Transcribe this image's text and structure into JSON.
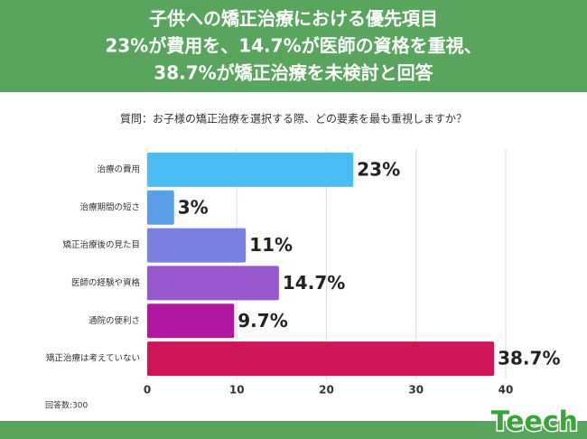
{
  "chart_data": {
    "type": "bar",
    "orientation": "horizontal",
    "title": [
      "子供への矯正治療における優先項目",
      "23%が費用を、14.7%が医師の資格を重視、",
      "38.7%が矯正治療を未検討と回答"
    ],
    "subtitle": "質問：お子様の矯正治療を選択する際、どの要素を最も重視しますか？",
    "categories": [
      "治療の費用",
      "治療期間の短さ",
      "矯正治療後の見た目",
      "医師の経験や資格",
      "通院の便利さ",
      "矯正治療は考えていない"
    ],
    "values": [
      23,
      3,
      11,
      14.7,
      9.7,
      38.7
    ],
    "value_labels": [
      "23%",
      "3%",
      "11%",
      "14.7%",
      "9.7%",
      "38.7%"
    ],
    "colors": [
      "#4cbcf4",
      "#5b9ee8",
      "#7a7fe0",
      "#9a58cf",
      "#b0199f",
      "#d0145a"
    ],
    "xlim": [
      0,
      40
    ],
    "xticks": [
      0,
      10,
      20,
      30,
      40
    ],
    "grid": true,
    "note": "回答数:300",
    "logo": "Teech"
  }
}
